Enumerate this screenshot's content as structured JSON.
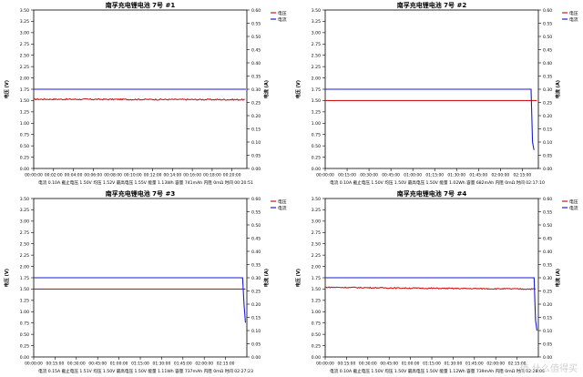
{
  "watermark": "值 什么值得买",
  "chart_data": [
    {
      "type": "line",
      "title": "南孚充电锂电池 7号 #1",
      "ylabel": "电压 (V)",
      "y2label": "电流 (A)",
      "ylim": [
        0,
        3.5
      ],
      "y2lim": [
        0,
        0.6
      ],
      "yticks": [
        "0.00",
        "0.25",
        "0.50",
        "0.75",
        "1.00",
        "1.25",
        "1.50",
        "1.75",
        "2.00",
        "2.25",
        "2.50",
        "2.75",
        "3.00",
        "3.25",
        "3.50"
      ],
      "y2ticks": [
        "0.00",
        "0.05",
        "0.10",
        "0.15",
        "0.20",
        "0.25",
        "0.30",
        "0.35",
        "0.40",
        "0.45",
        "0.50",
        "0.55",
        "0.60"
      ],
      "xticks": [
        "00:00:00",
        "00:02:00",
        "00:04:00",
        "00:06:00",
        "00:08:00",
        "00:10:00",
        "00:12:00",
        "00:14:00",
        "00:16:00",
        "00:18:00",
        "00:20:00"
      ],
      "xmax_min": 21.5,
      "legend": [
        "电压",
        "电流"
      ],
      "legend_position": "top-right",
      "footer": "电流 0.10A 截止电压 1.50V 均压 1.52V 最高电压 1.55V 能量 1.13Wh 容量 741mAh 内阻 0mΩ 时间 00:20:51",
      "series": [
        {
          "name": "电压",
          "color": "#d01818",
          "axis": "left",
          "points": [
            [
              0,
              1.53
            ],
            [
              21.3,
              1.52
            ]
          ],
          "noise": 0.014
        },
        {
          "name": "电流",
          "color": "#1a1adc",
          "axis": "right",
          "points": [
            [
              0,
              0.3
            ],
            [
              21.4,
              0.3
            ]
          ]
        }
      ]
    },
    {
      "type": "line",
      "title": "南孚充电锂电池 7号 #2",
      "ylabel": "电压 (V)",
      "y2label": "电流 (A)",
      "ylim": [
        0,
        3.5
      ],
      "y2lim": [
        0,
        0.6
      ],
      "yticks": [
        "0.00",
        "0.25",
        "0.50",
        "0.75",
        "1.00",
        "1.25",
        "1.50",
        "1.75",
        "2.00",
        "2.25",
        "2.50",
        "2.75",
        "3.00",
        "3.25",
        "3.50"
      ],
      "y2ticks": [
        "0.00",
        "0.05",
        "0.10",
        "0.15",
        "0.20",
        "0.25",
        "0.30",
        "0.35",
        "0.40",
        "0.45",
        "0.50",
        "0.55",
        "0.60"
      ],
      "xticks": [
        "00:00:00",
        "00:15:00",
        "00:30:00",
        "00:45:00",
        "01:00:00",
        "01:15:00",
        "01:30:00",
        "01:45:00",
        "02:00:00",
        "02:15:00"
      ],
      "xmax_min": 146,
      "legend": [
        "电压",
        "电流"
      ],
      "legend_position": "top-right",
      "footer": "电流 0.10A 截止电压 1.50V 均压 1.50V 最高电压 1.50V 能量 1.02Wh 容量 682mAh 内阻 0mΩ 时间 02:17:10",
      "series": [
        {
          "name": "电压",
          "color": "#d01818",
          "axis": "left",
          "points": [
            [
              0,
              1.5
            ],
            [
              145,
              1.5
            ]
          ]
        },
        {
          "name": "电流",
          "color": "#1a1adc",
          "axis": "right",
          "points": [
            [
              0,
              0.3
            ],
            [
              141,
              0.3
            ],
            [
              142,
              0.1
            ],
            [
              143,
              0.07
            ]
          ]
        }
      ]
    },
    {
      "type": "line",
      "title": "南孚充电锂电池 7号 #3",
      "ylabel": "电压 (V)",
      "y2label": "电流 (A)",
      "ylim": [
        0,
        3.5
      ],
      "y2lim": [
        0,
        0.6
      ],
      "yticks": [
        "0.00",
        "0.25",
        "0.50",
        "0.75",
        "1.00",
        "1.25",
        "1.50",
        "1.75",
        "2.00",
        "2.25",
        "2.50",
        "2.75",
        "3.00",
        "3.25",
        "3.50"
      ],
      "y2ticks": [
        "0.00",
        "0.05",
        "0.10",
        "0.15",
        "0.20",
        "0.25",
        "0.30",
        "0.35",
        "0.40",
        "0.45",
        "0.50",
        "0.55",
        "0.60"
      ],
      "xticks": [
        "00:00:00",
        "00:15:00",
        "00:30:00",
        "00:45:00",
        "01:00:00",
        "01:15:00",
        "01:30:00",
        "01:45:00",
        "02:00:00",
        "02:15:00"
      ],
      "xmax_min": 150,
      "legend": [
        "电压",
        "电流"
      ],
      "legend_position": "top-right",
      "footer": "电流 0.15A 截止电压 1.51V 均压 1.50V 最高电压 1.50V 能量 1.11Wh 容量 737mAh 内阻 0mΩ 时间 02:27:23",
      "series": [
        {
          "name": "电压",
          "color": "#d01818",
          "axis": "left",
          "points": [
            [
              0,
              1.5
            ],
            [
              149,
              1.5
            ]
          ]
        },
        {
          "name": "电流",
          "color": "#1a1adc",
          "axis": "right",
          "points": [
            [
              0,
              0.3
            ],
            [
              147,
              0.3
            ],
            [
              148,
              0.2
            ],
            [
              149,
              0.13
            ]
          ]
        }
      ]
    },
    {
      "type": "line",
      "title": "南孚充电锂电池 7号 #4",
      "ylabel": "电压 (V)",
      "y2label": "电流 (A)",
      "ylim": [
        0,
        3.5
      ],
      "y2lim": [
        0,
        0.6
      ],
      "yticks": [
        "0.00",
        "0.25",
        "0.50",
        "0.75",
        "1.00",
        "1.25",
        "1.50",
        "1.75",
        "2.00",
        "2.25",
        "2.50",
        "2.75",
        "3.00",
        "3.25",
        "3.50"
      ],
      "y2ticks": [
        "0.00",
        "0.05",
        "0.10",
        "0.15",
        "0.20",
        "0.25",
        "0.30",
        "0.35",
        "0.40",
        "0.45",
        "0.50",
        "0.55",
        "0.60"
      ],
      "xticks": [
        "00:00:00",
        "00:15:00",
        "00:30:00",
        "00:45:00",
        "01:00:00",
        "01:15:00",
        "01:30:00",
        "01:45:00",
        "02:00:00",
        "02:15:00"
      ],
      "xmax_min": 150,
      "legend": [
        "电压",
        "电流"
      ],
      "legend_position": "top-right",
      "footer": "电流 0.10A 截止电压 1.50V 均压 1.50V 最高电压 1.50V 能量 1.12Wh 容量 739mAh 内阻 0mΩ 时间 02:28:06",
      "series": [
        {
          "name": "电压",
          "color": "#d01818",
          "axis": "left",
          "points": [
            [
              0,
              1.54
            ],
            [
              60,
              1.52
            ],
            [
              148,
              1.5
            ]
          ],
          "noise": 0.012
        },
        {
          "name": "电流",
          "color": "#1a1adc",
          "axis": "right",
          "points": [
            [
              0,
              0.3
            ],
            [
              147,
              0.3
            ],
            [
              148,
              0.14
            ],
            [
              149,
              0.1
            ]
          ]
        }
      ]
    }
  ]
}
